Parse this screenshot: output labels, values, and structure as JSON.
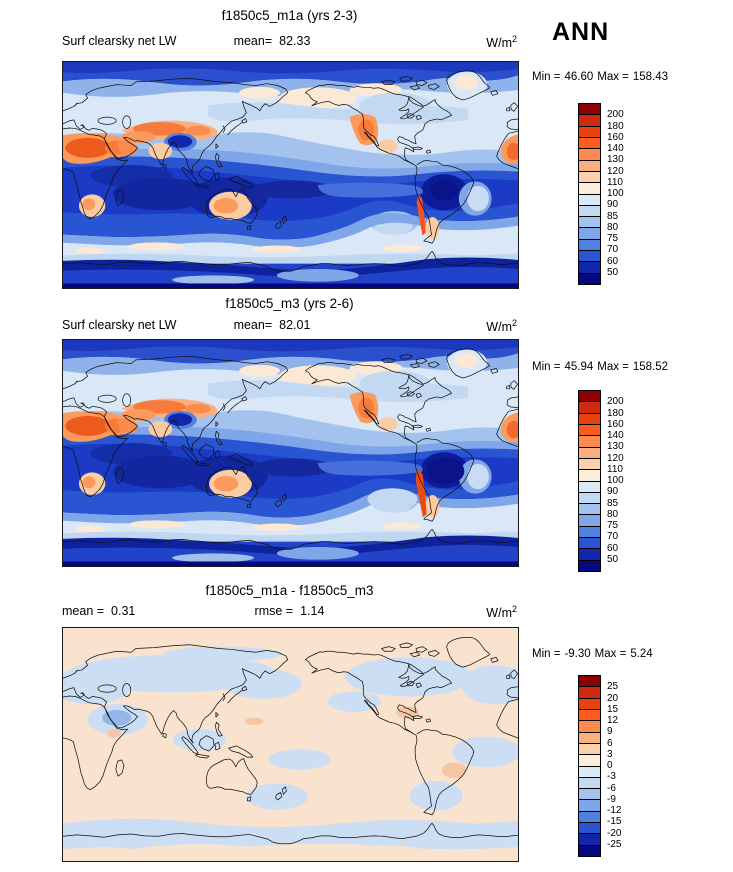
{
  "header": {
    "season": "ANN"
  },
  "panels": [
    {
      "title": "f1850c5_m1a (yrs 2-3)",
      "variable": "Surf clearsky net LW",
      "mean_label": "mean=",
      "mean_value": "82.33",
      "units_base": "W/m",
      "units_exp": "2",
      "min_label": "Min =",
      "min_value": "46.60",
      "max_label": "Max =",
      "max_value": "158.43",
      "colorbar": {
        "labels": [
          "200",
          "180",
          "160",
          "140",
          "130",
          "120",
          "110",
          "100",
          "90",
          "85",
          "80",
          "75",
          "70",
          "60",
          "50"
        ],
        "colors": [
          "#8B0000",
          "#CE2A10",
          "#E84111",
          "#FD5A1E",
          "#FD8A50",
          "#FBAF80",
          "#FBD0AC",
          "#FDEEDC",
          "#DCEAF8",
          "#C3D9F2",
          "#A3C3EE",
          "#7FA6E8",
          "#5280DE",
          "#2A55D2",
          "#1126AA",
          "#05087E"
        ]
      }
    },
    {
      "title": "f1850c5_m3 (yrs 2-6)",
      "variable": "Surf clearsky net LW",
      "mean_label": "mean=",
      "mean_value": "82.01",
      "units_base": "W/m",
      "units_exp": "2",
      "min_label": "Min =",
      "min_value": "45.94",
      "max_label": "Max =",
      "max_value": "158.52",
      "colorbar": {
        "labels": [
          "200",
          "180",
          "160",
          "140",
          "130",
          "120",
          "110",
          "100",
          "90",
          "85",
          "80",
          "75",
          "70",
          "60",
          "50"
        ],
        "colors": [
          "#8B0000",
          "#CE2A10",
          "#E84111",
          "#FD5A1E",
          "#FD8A50",
          "#FBAF80",
          "#FBD0AC",
          "#FDEEDC",
          "#DCEAF8",
          "#C3D9F2",
          "#A3C3EE",
          "#7FA6E8",
          "#5280DE",
          "#2A55D2",
          "#1126AA",
          "#05087E"
        ]
      }
    },
    {
      "title": "f1850c5_m1a - f1850c5_m3",
      "mean_label": "mean =",
      "mean_value": "0.31",
      "rmse_label": "rmse =",
      "rmse_value": "1.14",
      "units_base": "W/m",
      "units_exp": "2",
      "min_label": "Min =",
      "min_value": "-9.30",
      "max_label": "Max =",
      "max_value": "5.24",
      "colorbar": {
        "labels": [
          "25",
          "20",
          "15",
          "12",
          "9",
          "6",
          "3",
          "0",
          "-3",
          "-6",
          "-9",
          "-12",
          "-15",
          "-20",
          "-25"
        ],
        "colors": [
          "#8B0000",
          "#CE2A10",
          "#E84111",
          "#FD5A1E",
          "#FD8A50",
          "#FBAF80",
          "#FBD0AC",
          "#FDEEDC",
          "#DCEAF8",
          "#C3D9F2",
          "#A3C3EE",
          "#7FA6E8",
          "#5280DE",
          "#2A55D2",
          "#1126AA",
          "#05087E"
        ]
      }
    }
  ],
  "chart_data": [
    {
      "type": "heatmap",
      "title": "f1850c5_m1a (yrs 2-3)",
      "variable": "Surf clearsky net LW",
      "units": "W/m^2",
      "season": "ANN",
      "projection": "global lat-lon, Pacific-centered",
      "stats": {
        "mean": 82.33,
        "min": 46.6,
        "max": 158.43
      },
      "contour_levels": [
        50,
        60,
        70,
        75,
        80,
        85,
        90,
        100,
        110,
        120,
        130,
        140,
        160,
        180,
        200
      ],
      "palette_top_to_bottom": [
        "#8B0000",
        "#CE2A10",
        "#E84111",
        "#FD5A1E",
        "#FD8A50",
        "#FBAF80",
        "#FBD0AC",
        "#FDEEDC",
        "#DCEAF8",
        "#C3D9F2",
        "#A3C3EE",
        "#7FA6E8",
        "#5280DE",
        "#2A55D2",
        "#1126AA",
        "#05087E"
      ],
      "legend_position": "right"
    },
    {
      "type": "heatmap",
      "title": "f1850c5_m3 (yrs 2-6)",
      "variable": "Surf clearsky net LW",
      "units": "W/m^2",
      "season": "ANN",
      "projection": "global lat-lon, Pacific-centered",
      "stats": {
        "mean": 82.01,
        "min": 45.94,
        "max": 158.52
      },
      "contour_levels": [
        50,
        60,
        70,
        75,
        80,
        85,
        90,
        100,
        110,
        120,
        130,
        140,
        160,
        180,
        200
      ],
      "legend_position": "right"
    },
    {
      "type": "heatmap",
      "title": "f1850c5_m1a - f1850c5_m3",
      "kind": "difference",
      "units": "W/m^2",
      "season": "ANN",
      "projection": "global lat-lon, Pacific-centered",
      "stats": {
        "mean": 0.31,
        "rmse": 1.14,
        "min": -9.3,
        "max": 5.24
      },
      "contour_levels": [
        -25,
        -20,
        -15,
        -12,
        -9,
        -6,
        -3,
        0,
        3,
        6,
        9,
        12,
        15,
        20,
        25
      ],
      "legend_position": "right"
    }
  ]
}
